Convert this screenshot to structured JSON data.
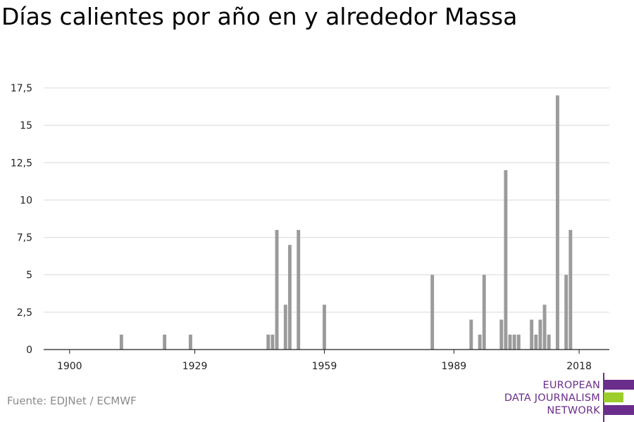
{
  "title": "Días calientes por año en y alrededor Massa",
  "source": "Fuente: EDJNet / ECMWF",
  "logo": {
    "lines": [
      "EUROPEAN",
      "DATA JOURNALISM",
      "NETWORK"
    ],
    "colors": [
      "#6b2d8c",
      "#9ccd2b",
      "#6b2d8c"
    ]
  },
  "colors": {
    "bar": "#9b9b9b",
    "grid": "#d9d9d9",
    "axis": "#222222"
  },
  "chart_data": {
    "type": "bar",
    "title": "Días calientes por año en y alrededor Massa",
    "xlabel": "",
    "ylabel": "",
    "xlim": [
      1894,
      2025
    ],
    "ylim": [
      0,
      17.5
    ],
    "x_ticks": [
      1900,
      1929,
      1959,
      1989,
      2018
    ],
    "y_ticks": [
      0,
      2.5,
      5,
      7.5,
      10,
      12.5,
      15,
      17.5
    ],
    "y_tick_labels": [
      "0",
      "2,5",
      "5",
      "7,5",
      "10",
      "12,5",
      "15",
      "17,5"
    ],
    "grid": true,
    "legend": "none",
    "x": [
      1912,
      1922,
      1928,
      1946,
      1947,
      1948,
      1950,
      1951,
      1953,
      1959,
      1984,
      1993,
      1995,
      1996,
      2000,
      2001,
      2002,
      2003,
      2004,
      2007,
      2008,
      2009,
      2010,
      2011,
      2013,
      2015,
      2016
    ],
    "values": [
      1,
      1,
      1,
      1,
      1,
      8,
      3,
      7,
      8,
      3,
      5,
      2,
      1,
      5,
      2,
      12,
      1,
      1,
      1,
      2,
      1,
      2,
      3,
      1,
      17,
      5,
      8
    ]
  }
}
